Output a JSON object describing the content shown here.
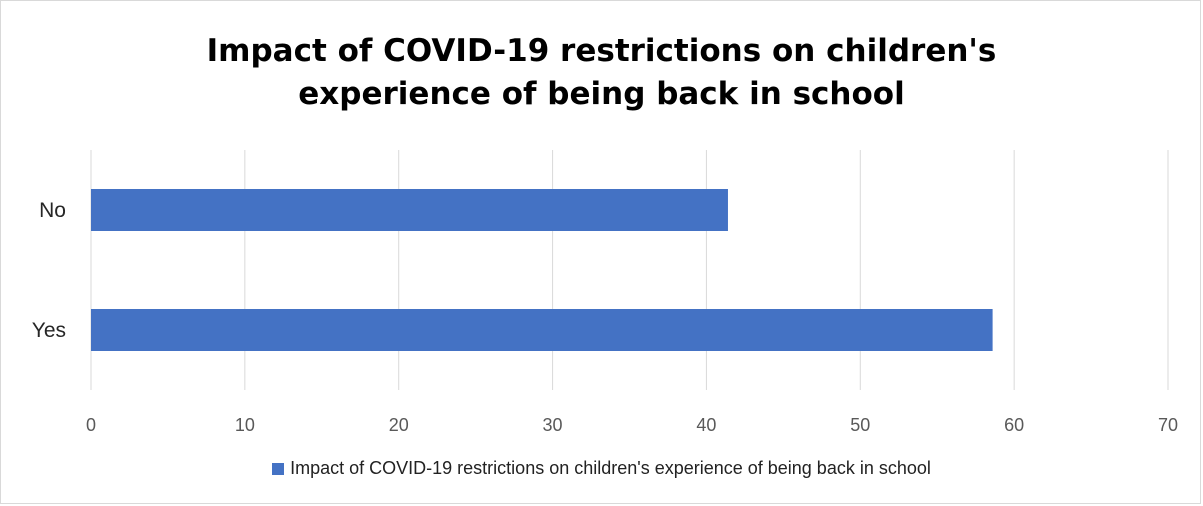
{
  "chart_data": {
    "type": "bar",
    "orientation": "horizontal",
    "title_lines": [
      "Impact of COVID-19 restrictions on children's",
      "experience of being back in school"
    ],
    "categories": [
      "No",
      "Yes"
    ],
    "series": [
      {
        "name": "Impact of COVID-19 restrictions on children's experience of being back in school",
        "values": [
          41.4,
          58.6
        ],
        "color": "#4472c4"
      }
    ],
    "xlim": [
      0,
      70
    ],
    "xticks": [
      0,
      10,
      20,
      30,
      40,
      50,
      60,
      70
    ],
    "grid": true,
    "legend": "bottom"
  }
}
